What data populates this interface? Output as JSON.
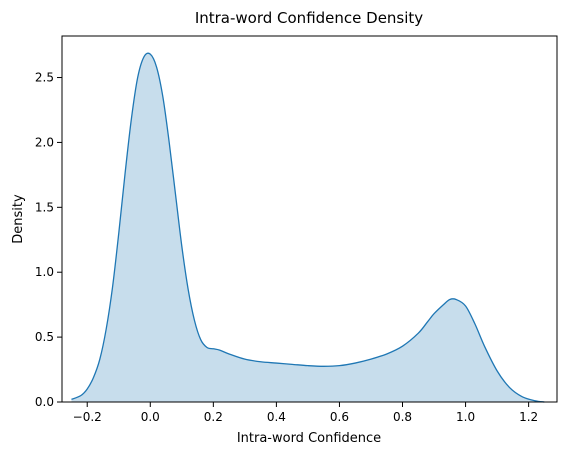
{
  "chart_data": {
    "type": "area",
    "title": "Intra-word Confidence Density",
    "xlabel": "Intra-word Confidence",
    "ylabel": "Density",
    "xlim": [
      -0.28,
      1.29
    ],
    "ylim": [
      0,
      2.82
    ],
    "xticks": [
      -0.2,
      0.0,
      0.2,
      0.4,
      0.6,
      0.8,
      1.0,
      1.2
    ],
    "xtick_labels": [
      "−0.2",
      "0.0",
      "0.2",
      "0.4",
      "0.6",
      "0.8",
      "1.0",
      "1.2"
    ],
    "yticks": [
      0.0,
      0.5,
      1.0,
      1.5,
      2.0,
      2.5
    ],
    "ytick_labels": [
      "0.0",
      "0.5",
      "1.0",
      "1.5",
      "2.0",
      "2.5"
    ],
    "grid": false,
    "legend": "none",
    "colors": {
      "line": "#1f77b4",
      "fill": "#1f77b4",
      "fill_opacity": 0.25,
      "axes": "#000000"
    },
    "series": [
      {
        "x": [
          -0.25,
          -0.22,
          -0.2,
          -0.18,
          -0.16,
          -0.14,
          -0.12,
          -0.1,
          -0.08,
          -0.06,
          -0.04,
          -0.02,
          0.0,
          0.02,
          0.04,
          0.06,
          0.08,
          0.1,
          0.12,
          0.14,
          0.16,
          0.18,
          0.2,
          0.22,
          0.25,
          0.3,
          0.35,
          0.4,
          0.45,
          0.5,
          0.55,
          0.6,
          0.65,
          0.7,
          0.75,
          0.8,
          0.85,
          0.88,
          0.9,
          0.93,
          0.95,
          0.97,
          1.0,
          1.03,
          1.06,
          1.1,
          1.14,
          1.18,
          1.22,
          1.25
        ],
        "y": [
          0.02,
          0.05,
          0.1,
          0.19,
          0.33,
          0.56,
          0.88,
          1.3,
          1.76,
          2.18,
          2.5,
          2.66,
          2.68,
          2.58,
          2.35,
          2.0,
          1.6,
          1.2,
          0.87,
          0.63,
          0.48,
          0.42,
          0.41,
          0.4,
          0.37,
          0.33,
          0.31,
          0.3,
          0.29,
          0.28,
          0.275,
          0.28,
          0.3,
          0.33,
          0.37,
          0.43,
          0.53,
          0.62,
          0.68,
          0.75,
          0.79,
          0.79,
          0.74,
          0.6,
          0.43,
          0.24,
          0.11,
          0.04,
          0.01,
          0.0
        ]
      }
    ]
  }
}
